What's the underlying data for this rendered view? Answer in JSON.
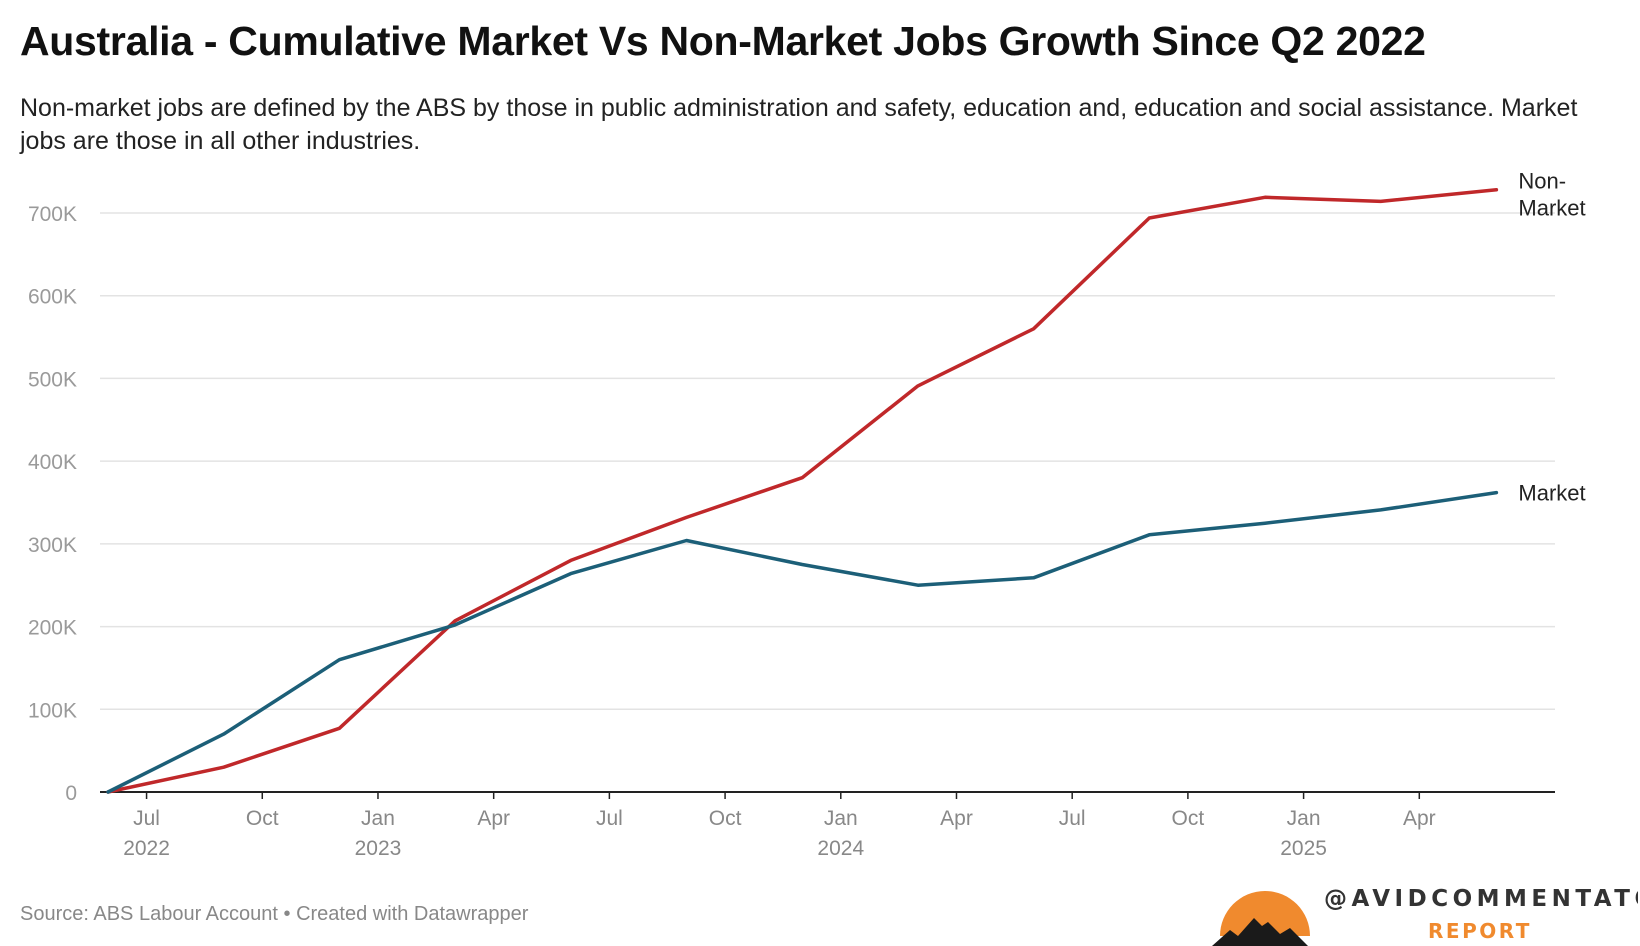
{
  "title": "Australia - Cumulative Market Vs Non-Market Jobs Growth Since Q2 2022",
  "subtitle": "Non-market jobs are defined by the ABS by those in public administration and safety, education and, education and social assistance. Market jobs are those in all other industries.",
  "footer": {
    "source": "Source: ABS Labour Account • Created with Datawrapper"
  },
  "logo": {
    "handle": "@AVIDCOMMENTATOR",
    "tagline": "REPORT",
    "colors": {
      "sun": "#F08A2E",
      "mountain": "#1A1A1A",
      "handle": "#333333",
      "tagline": "#F08A2E"
    }
  },
  "chart_data": {
    "type": "line",
    "title": "Australia - Cumulative Market Vs Non-Market Jobs Growth Since Q2 2022",
    "x": [
      "2022-06",
      "2022-09",
      "2022-12",
      "2023-03",
      "2023-06",
      "2023-09",
      "2023-12",
      "2024-03",
      "2024-06",
      "2024-09",
      "2024-12",
      "2025-03",
      "2025-06"
    ],
    "x_ticks": [
      {
        "date": "2022-07",
        "label": "Jul",
        "year": "2022"
      },
      {
        "date": "2022-10",
        "label": "Oct",
        "year": ""
      },
      {
        "date": "2023-01",
        "label": "Jan",
        "year": "2023"
      },
      {
        "date": "2023-04",
        "label": "Apr",
        "year": ""
      },
      {
        "date": "2023-07",
        "label": "Jul",
        "year": ""
      },
      {
        "date": "2023-10",
        "label": "Oct",
        "year": ""
      },
      {
        "date": "2024-01",
        "label": "Jan",
        "year": "2024"
      },
      {
        "date": "2024-04",
        "label": "Apr",
        "year": ""
      },
      {
        "date": "2024-07",
        "label": "Jul",
        "year": ""
      },
      {
        "date": "2024-10",
        "label": "Oct",
        "year": ""
      },
      {
        "date": "2025-01",
        "label": "Jan",
        "year": "2025"
      },
      {
        "date": "2025-04",
        "label": "Apr",
        "year": ""
      }
    ],
    "y_ticks": [
      {
        "value": 0,
        "label": "0"
      },
      {
        "value": 100000,
        "label": "100K"
      },
      {
        "value": 200000,
        "label": "200K"
      },
      {
        "value": 300000,
        "label": "300K"
      },
      {
        "value": 400000,
        "label": "400K"
      },
      {
        "value": 500000,
        "label": "500K"
      },
      {
        "value": 600000,
        "label": "600K"
      },
      {
        "value": 700000,
        "label": "700K"
      }
    ],
    "ylim": [
      0,
      700000
    ],
    "xlim": [
      "2022-06",
      "2025-07"
    ],
    "grid": true,
    "series": [
      {
        "name": "Non-Market",
        "label_lines": [
          "Non-",
          "Market"
        ],
        "color": "#C0282A",
        "values": [
          0,
          30000,
          77000,
          207000,
          280000,
          332000,
          380000,
          491000,
          560000,
          694000,
          719000,
          714000,
          728000
        ]
      },
      {
        "name": "Market",
        "label_lines": [
          "Market"
        ],
        "color": "#1C5F78",
        "values": [
          0,
          70000,
          160000,
          202000,
          264000,
          304000,
          275000,
          250000,
          259000,
          311000,
          325000,
          341000,
          362000
        ]
      }
    ]
  }
}
